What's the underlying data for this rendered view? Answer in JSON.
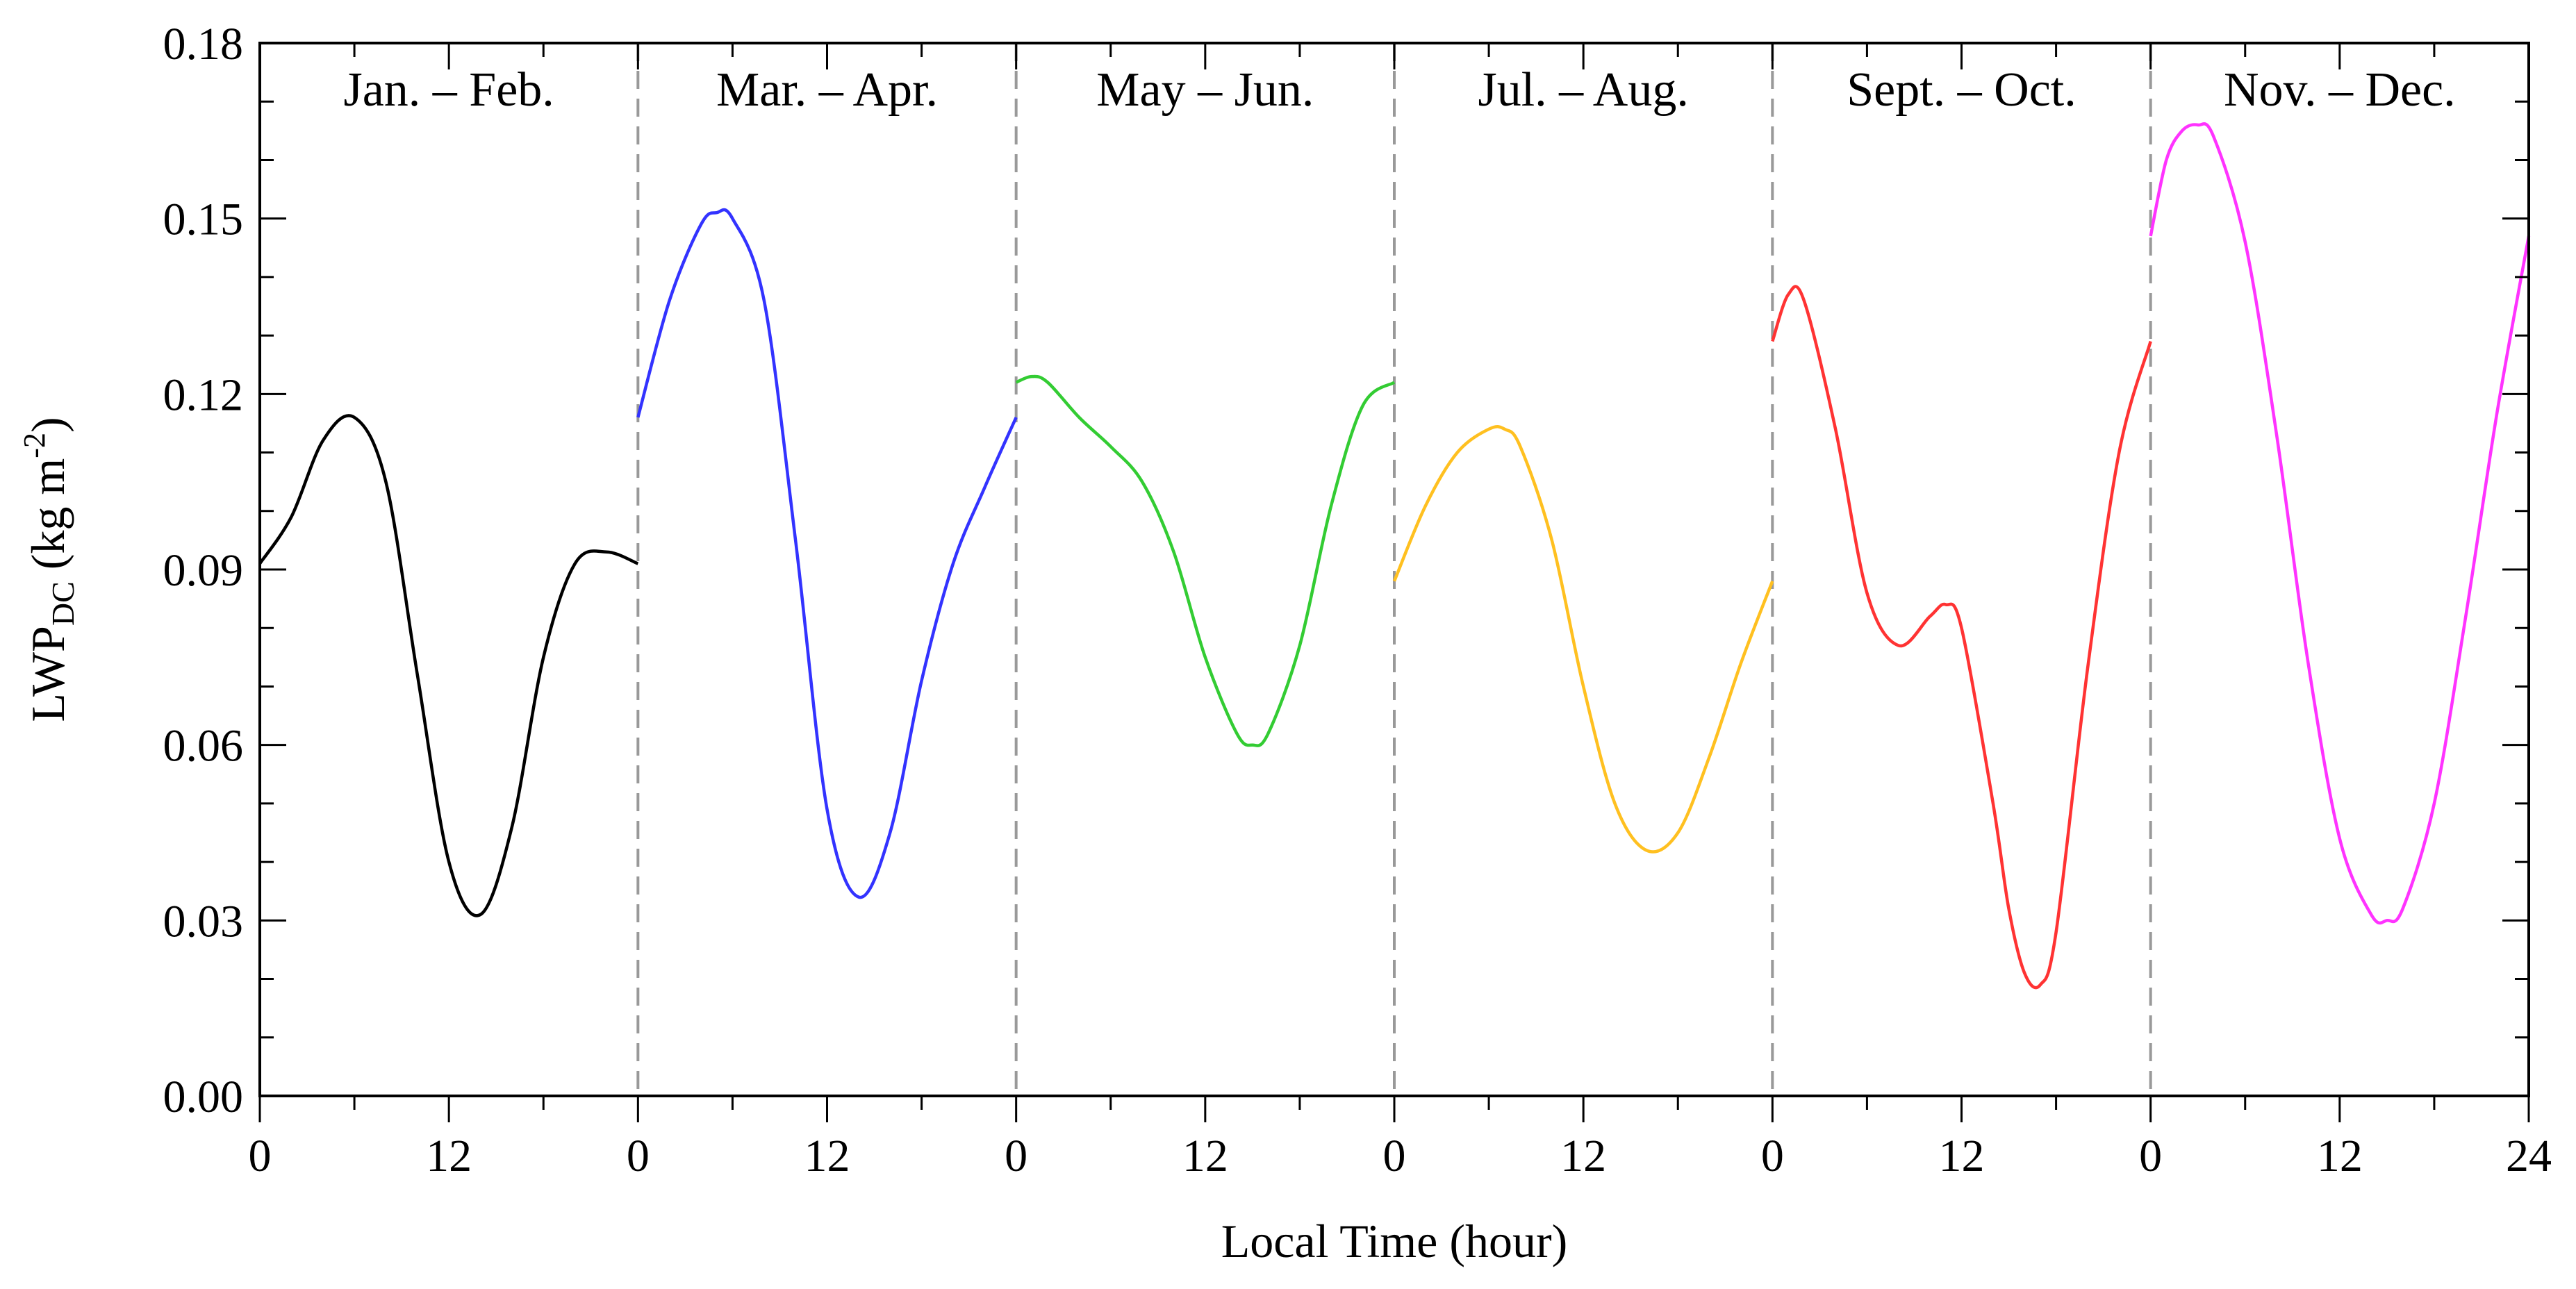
{
  "chart_data": {
    "type": "line",
    "title": "",
    "xlabel": "Local Time (hour)",
    "ylabel": {
      "main": "LWP",
      "sub": "DC",
      "units_prefix": " (kg m",
      "units_sup": "-2",
      "units_suffix": ")"
    },
    "ylim": [
      0,
      0.18
    ],
    "y_ticks": [
      "0.00",
      "0.03",
      "0.06",
      "0.09",
      "0.12",
      "0.15",
      "0.18"
    ],
    "x_tick_labels": [
      "0",
      "12",
      "0",
      "12",
      "0",
      "12",
      "0",
      "12",
      "0",
      "12",
      "0",
      "12",
      "24"
    ],
    "grid": false,
    "panels": [
      {
        "label": "Jan. – Feb.",
        "color": "#000000",
        "x": [
          0,
          2,
          4,
          6,
          8,
          10,
          12,
          14,
          16,
          18,
          20,
          22,
          24
        ],
        "y": [
          0.091,
          0.099,
          0.112,
          0.116,
          0.105,
          0.072,
          0.04,
          0.031,
          0.046,
          0.075,
          0.091,
          0.093,
          0.091
        ]
      },
      {
        "label": "Mar. – Apr.",
        "color": "#3333ff",
        "x": [
          0,
          2,
          4,
          5,
          6,
          8,
          10,
          12,
          14,
          16,
          18,
          20,
          22,
          24
        ],
        "y": [
          0.116,
          0.136,
          0.149,
          0.151,
          0.15,
          0.136,
          0.095,
          0.049,
          0.034,
          0.045,
          0.071,
          0.091,
          0.104,
          0.116
        ]
      },
      {
        "label": "May – Jun.",
        "color": "#33cc33",
        "x": [
          0,
          1,
          2,
          4,
          6,
          8,
          10,
          12,
          14,
          15,
          16,
          18,
          20,
          22,
          24
        ],
        "y": [
          0.122,
          0.123,
          0.122,
          0.116,
          0.111,
          0.105,
          0.093,
          0.075,
          0.062,
          0.06,
          0.062,
          0.077,
          0.101,
          0.118,
          0.122
        ]
      },
      {
        "label": "Jul. – Aug.",
        "color": "#ffc020",
        "x": [
          0,
          2,
          4,
          6,
          7,
          8,
          10,
          12,
          14,
          16,
          18,
          20,
          22,
          24
        ],
        "y": [
          0.088,
          0.101,
          0.11,
          0.114,
          0.114,
          0.111,
          0.095,
          0.07,
          0.05,
          0.042,
          0.045,
          0.058,
          0.074,
          0.088
        ]
      },
      {
        "label": "Sept. – Oct.",
        "color": "#ff3333",
        "x": [
          0,
          1,
          2,
          4,
          6,
          8,
          10,
          11,
          12,
          14,
          15,
          16,
          17,
          18,
          20,
          22,
          24
        ],
        "y": [
          0.129,
          0.137,
          0.136,
          0.114,
          0.086,
          0.077,
          0.082,
          0.084,
          0.08,
          0.05,
          0.032,
          0.021,
          0.019,
          0.028,
          0.073,
          0.11,
          0.129
        ]
      },
      {
        "label": "Nov. – Dec.",
        "color": "#ff33ff",
        "x": [
          0,
          1,
          2,
          3,
          4,
          6,
          8,
          10,
          12,
          14,
          15,
          16,
          18,
          20,
          22,
          24
        ],
        "y": [
          0.147,
          0.16,
          0.165,
          0.166,
          0.164,
          0.146,
          0.113,
          0.074,
          0.044,
          0.031,
          0.03,
          0.032,
          0.05,
          0.082,
          0.117,
          0.147
        ]
      }
    ]
  }
}
